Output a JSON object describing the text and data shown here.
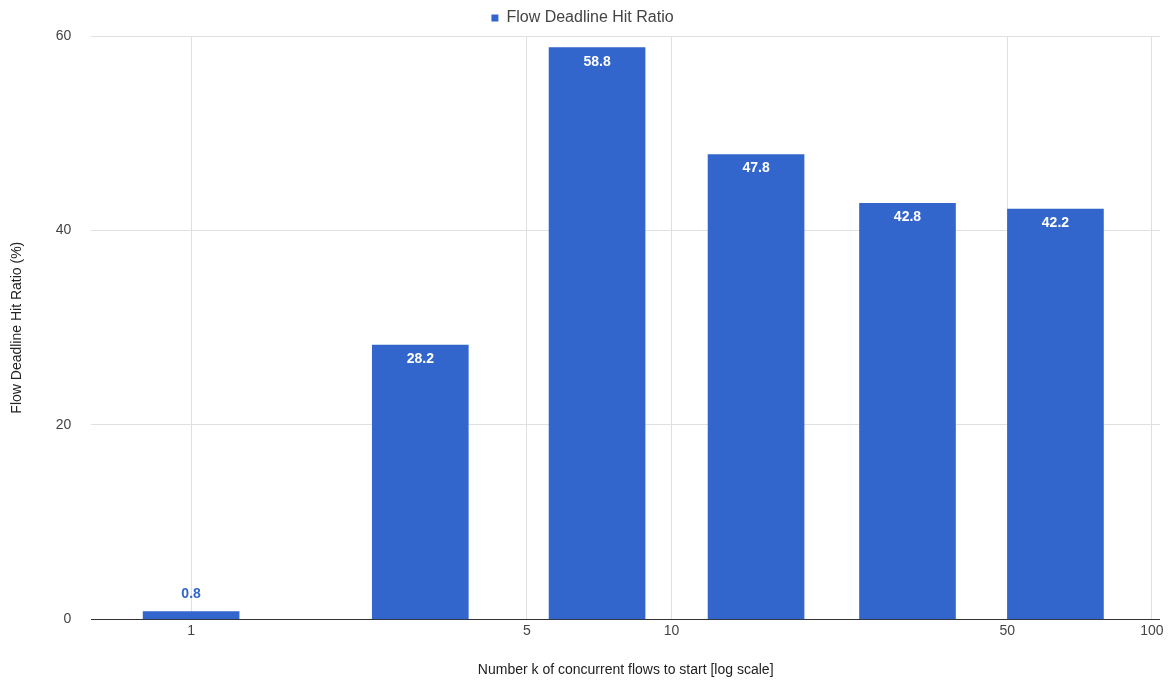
{
  "chart_data": {
    "type": "bar",
    "xlabel": "Number k of concurrent flows to start [log scale]",
    "ylabel": "Flow Deadline Hit Ratio (%)",
    "x": [
      1,
      3,
      7,
      15,
      31,
      63
    ],
    "series": [
      {
        "name": "Flow Deadline Hit Ratio",
        "color": "#3366cc",
        "values": [
          0.8,
          28.2,
          58.8,
          47.8,
          42.8,
          42.2
        ]
      }
    ],
    "log": "x",
    "xlim": [
      0.62,
      104
    ],
    "xticks": [
      1,
      5,
      10,
      50,
      100
    ],
    "ylim": [
      0,
      60
    ],
    "yticks": [
      0,
      20,
      40,
      60
    ],
    "grid": true,
    "legend": "top",
    "data_labels": true
  }
}
